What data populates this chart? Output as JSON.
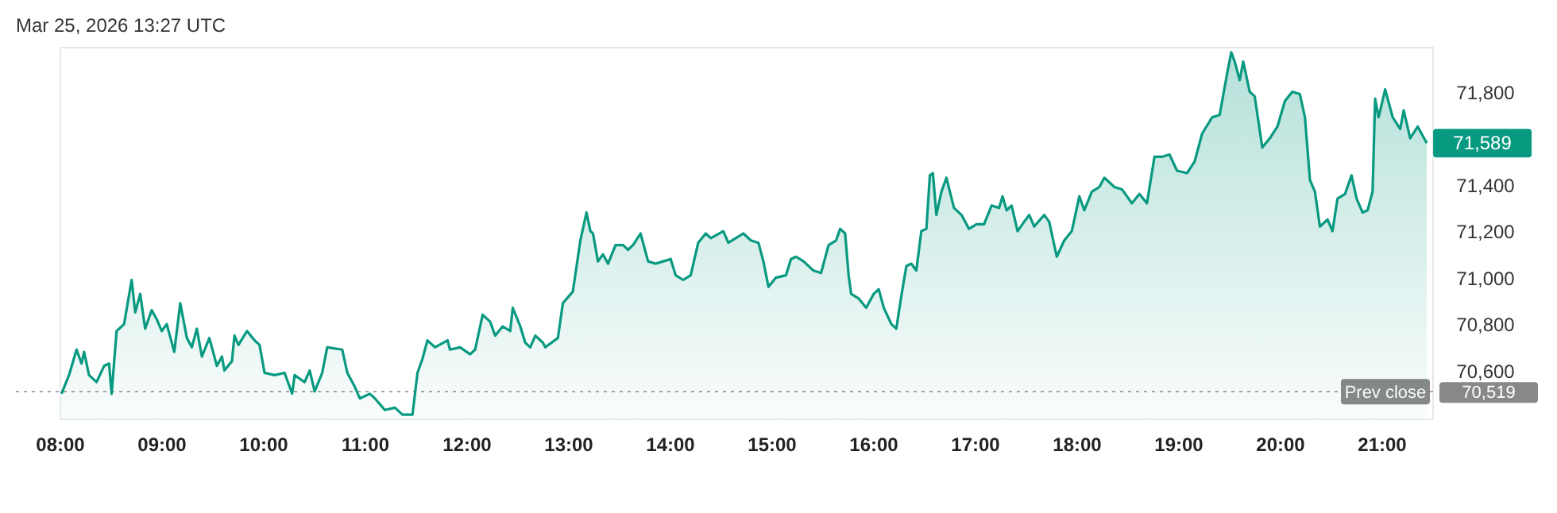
{
  "chart_data": {
    "type": "area",
    "subtitle": "Mar 25, 2026 13:27 UTC",
    "x": [
      8.011,
      8.085,
      8.159,
      8.208,
      8.233,
      8.282,
      8.356,
      8.43,
      8.479,
      8.504,
      8.553,
      8.627,
      8.701,
      8.736,
      8.785,
      8.834,
      8.898,
      8.948,
      8.997,
      9.046,
      9.12,
      9.179,
      9.244,
      9.293,
      9.342,
      9.392,
      9.465,
      9.539,
      9.589,
      9.613,
      9.687,
      9.712,
      9.751,
      9.835,
      9.909,
      9.959,
      10.008,
      10.107,
      10.205,
      10.279,
      10.304,
      10.402,
      10.452,
      10.501,
      10.575,
      10.624,
      10.772,
      10.822,
      10.895,
      10.945,
      11.043,
      11.093,
      11.191,
      11.29,
      11.364,
      11.463,
      11.512,
      11.561,
      11.61,
      11.684,
      11.808,
      11.832,
      11.931,
      12.03,
      12.079,
      12.153,
      12.227,
      12.276,
      12.35,
      12.424,
      12.449,
      12.523,
      12.572,
      12.621,
      12.671,
      12.745,
      12.769,
      12.893,
      12.942,
      13.04,
      13.114,
      13.174,
      13.213,
      13.238,
      13.287,
      13.336,
      13.386,
      13.46,
      13.534,
      13.583,
      13.632,
      13.706,
      13.78,
      13.854,
      13.928,
      14.002,
      14.051,
      14.125,
      14.199,
      14.273,
      14.347,
      14.397,
      14.52,
      14.569,
      14.643,
      14.717,
      14.791,
      14.865,
      14.914,
      14.964,
      15.038,
      15.136,
      15.185,
      15.235,
      15.309,
      15.407,
      15.481,
      15.555,
      15.629,
      15.669,
      15.718,
      15.752,
      15.777,
      15.851,
      15.925,
      15.999,
      16.048,
      16.098,
      16.172,
      16.221,
      16.27,
      16.32,
      16.369,
      16.418,
      16.467,
      16.517,
      16.551,
      16.581,
      16.615,
      16.665,
      16.714,
      16.788,
      16.862,
      16.936,
      17.01,
      17.084,
      17.158,
      17.232,
      17.266,
      17.306,
      17.355,
      17.414,
      17.478,
      17.528,
      17.577,
      17.676,
      17.725,
      17.799,
      17.873,
      17.947,
      18.021,
      18.07,
      18.144,
      18.218,
      18.267,
      18.366,
      18.44,
      18.538,
      18.612,
      18.686,
      18.76,
      18.834,
      18.908,
      18.982,
      19.081,
      19.155,
      19.229,
      19.327,
      19.401,
      19.475,
      19.515,
      19.549,
      19.598,
      19.633,
      19.697,
      19.746,
      19.82,
      19.895,
      19.969,
      20.043,
      20.116,
      20.19,
      20.24,
      20.289,
      20.338,
      20.387,
      20.462,
      20.511,
      20.56,
      20.634,
      20.698,
      20.748,
      20.807,
      20.856,
      20.905,
      20.93,
      20.964,
      21.029,
      21.103,
      21.177,
      21.211,
      21.275,
      21.349,
      21.438
    ],
    "series": [
      {
        "color": "#089981",
        "values": [
          70510,
          70590,
          70700,
          70640,
          70690,
          70590,
          70560,
          70630,
          70640,
          70510,
          70780,
          70810,
          71000,
          70860,
          70940,
          70790,
          70870,
          70830,
          70780,
          70810,
          70690,
          70900,
          70750,
          70710,
          70790,
          70670,
          70750,
          70630,
          70670,
          70610,
          70650,
          70760,
          70720,
          70780,
          70740,
          70720,
          70600,
          70590,
          70600,
          70510,
          70590,
          70560,
          70610,
          70520,
          70600,
          70710,
          70700,
          70600,
          70540,
          70490,
          70510,
          70490,
          70440,
          70450,
          70420,
          70420,
          70600,
          70660,
          70740,
          70710,
          70740,
          70700,
          70710,
          70680,
          70700,
          70850,
          70820,
          70760,
          70800,
          70780,
          70880,
          70800,
          70730,
          70710,
          70760,
          70730,
          70710,
          70750,
          70900,
          70950,
          71170,
          71290,
          71210,
          71200,
          71080,
          71110,
          71070,
          71150,
          71150,
          71130,
          71150,
          71200,
          71080,
          71070,
          71080,
          71090,
          71020,
          71000,
          71020,
          71160,
          71200,
          71180,
          71210,
          71160,
          71180,
          71200,
          71170,
          71160,
          71080,
          70970,
          71010,
          71020,
          71090,
          71100,
          71080,
          71040,
          71030,
          71150,
          71170,
          71220,
          71200,
          71020,
          70940,
          70920,
          70880,
          70940,
          70960,
          70880,
          70810,
          70790,
          70930,
          71060,
          71070,
          71040,
          71210,
          71220,
          71450,
          71460,
          71280,
          71380,
          71440,
          71310,
          71280,
          71220,
          71240,
          71240,
          71320,
          71310,
          71360,
          71300,
          71320,
          71210,
          71250,
          71280,
          71230,
          71280,
          71250,
          71100,
          71170,
          71210,
          71360,
          71300,
          71380,
          71400,
          71440,
          71400,
          71390,
          71330,
          71370,
          71330,
          71530,
          71530,
          71540,
          71470,
          71460,
          71510,
          71630,
          71700,
          71710,
          71890,
          71980,
          71940,
          71860,
          71940,
          71810,
          71790,
          71570,
          71610,
          71660,
          71770,
          71810,
          71800,
          71700,
          71430,
          71380,
          71230,
          71260,
          71210,
          71350,
          71370,
          71450,
          71350,
          71290,
          71300,
          71380,
          71780,
          71700,
          71820,
          71700,
          71650,
          71730,
          71610,
          71660,
          71589
        ]
      }
    ],
    "xlim": [
      8,
      21.5
    ],
    "ylim": [
      70400,
      72000
    ],
    "xticks": [
      {
        "value": 8,
        "label": "08:00"
      },
      {
        "value": 9,
        "label": "09:00"
      },
      {
        "value": 10,
        "label": "10:00"
      },
      {
        "value": 11,
        "label": "11:00"
      },
      {
        "value": 12,
        "label": "12:00"
      },
      {
        "value": 13,
        "label": "13:00"
      },
      {
        "value": 14,
        "label": "14:00"
      },
      {
        "value": 15,
        "label": "15:00"
      },
      {
        "value": 16,
        "label": "16:00"
      },
      {
        "value": 17,
        "label": "17:00"
      },
      {
        "value": 18,
        "label": "18:00"
      },
      {
        "value": 19,
        "label": "19:00"
      },
      {
        "value": 20,
        "label": "20:00"
      },
      {
        "value": 21,
        "label": "21:00"
      }
    ],
    "yticks": [
      {
        "value": 70600,
        "label": "70,600"
      },
      {
        "value": 70800,
        "label": "70,800"
      },
      {
        "value": 71000,
        "label": "71,000"
      },
      {
        "value": 71200,
        "label": "71,200"
      },
      {
        "value": 71400,
        "label": "71,400"
      },
      {
        "value": 71800,
        "label": "71,800"
      }
    ],
    "ref_lines": [
      {
        "axis": "y",
        "value": 70519,
        "label": "Prev close",
        "color": "#888888",
        "line_style": "dotted"
      }
    ],
    "annotations": [
      {
        "text": "71,589",
        "x": 21.438,
        "y": 71589
      },
      {
        "text": "70,519",
        "x": 21.5,
        "y": 70519
      }
    ],
    "grid": false,
    "legend": false,
    "line_style": "solid",
    "marker": "none"
  }
}
